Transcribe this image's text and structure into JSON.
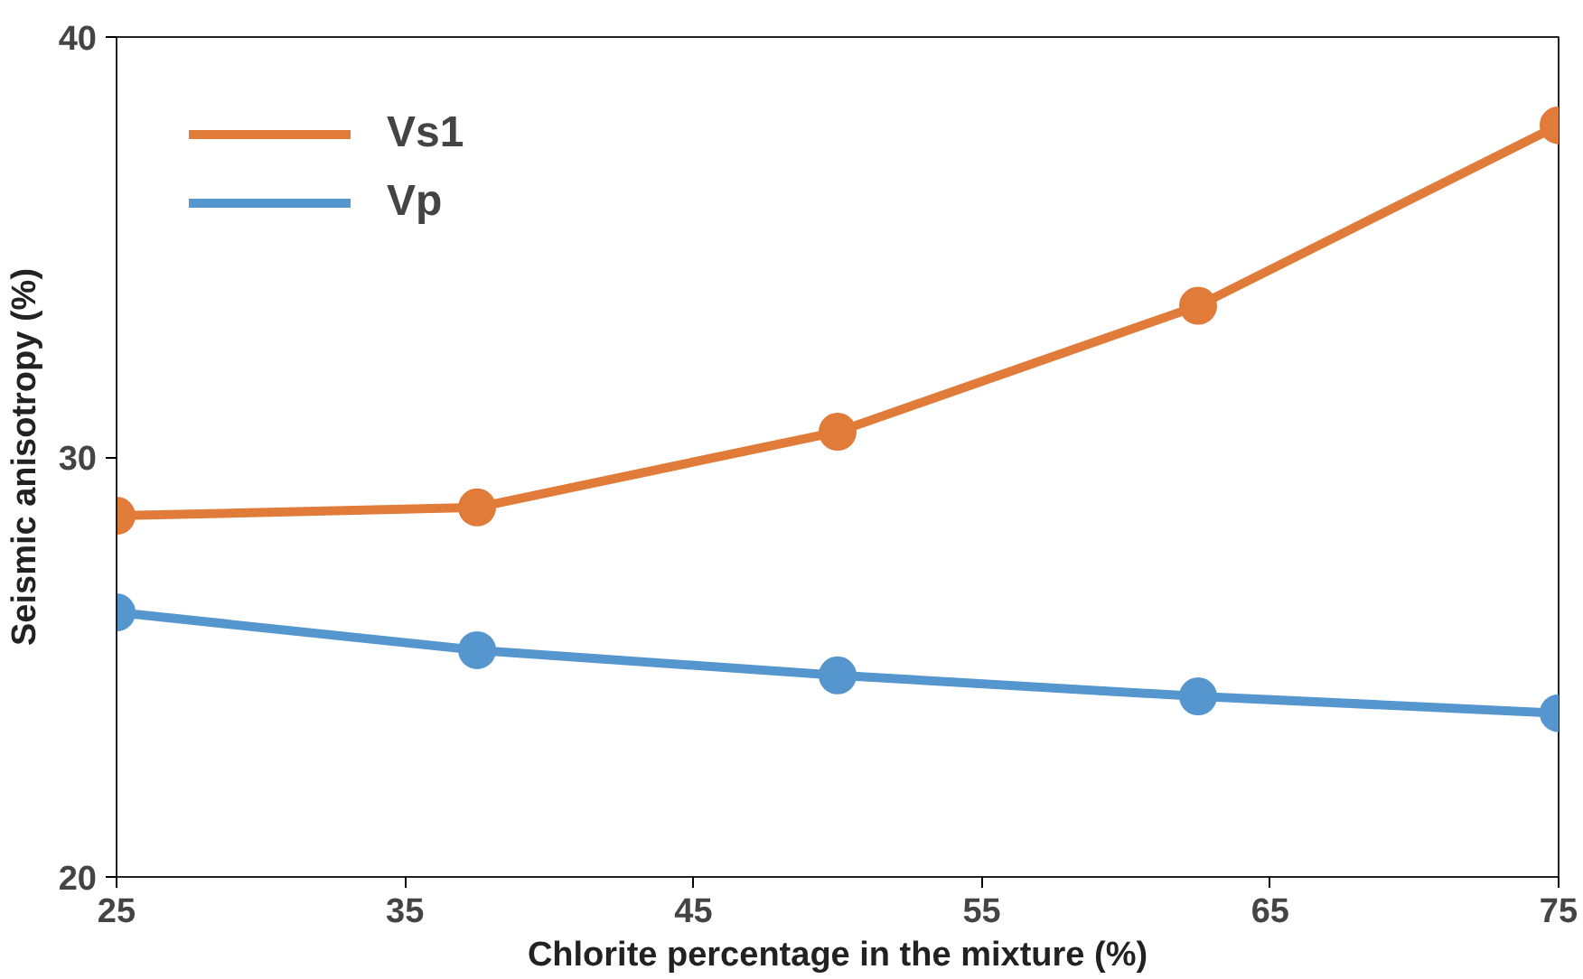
{
  "chart_data": {
    "type": "line",
    "xlabel": "Chlorite percentage in the mixture (%)",
    "ylabel": "Seismic anisotropy (%)",
    "x": [
      25,
      37.5,
      50,
      62.5,
      75
    ],
    "series": [
      {
        "name": "Vs1",
        "color": "#e07b39",
        "values": [
          28.6,
          28.8,
          30.6,
          33.6,
          37.9
        ]
      },
      {
        "name": "Vp",
        "color": "#5596cf",
        "values": [
          26.3,
          25.4,
          24.8,
          24.3,
          23.9
        ]
      }
    ],
    "xlim": [
      25,
      75
    ],
    "ylim": [
      20,
      40
    ],
    "xticks": [
      25,
      35,
      45,
      55,
      65,
      75
    ],
    "yticks": [
      20,
      30,
      40
    ],
    "grid": false,
    "legend": "top left",
    "marker": "circle",
    "line_style": "solid"
  }
}
